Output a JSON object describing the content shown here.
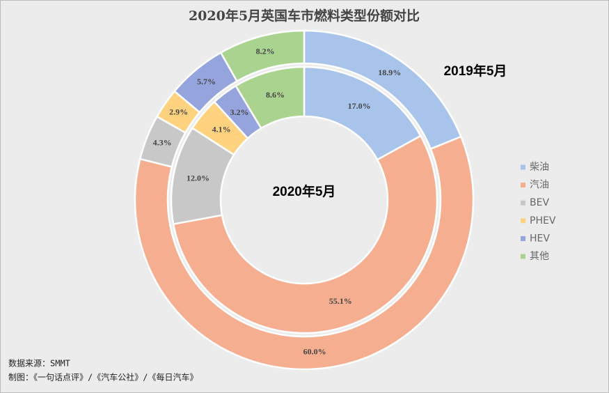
{
  "chart_data": {
    "type": "pie",
    "title": "2020年5月英国车市燃料类型份额对比",
    "categories": [
      "柴油",
      "汽油",
      "BEV",
      "PHEV",
      "HEV",
      "其他"
    ],
    "colors": [
      "#a9c4eb",
      "#f5ae90",
      "#c8c8c8",
      "#ffd27f",
      "#95a4dd",
      "#a9d38f"
    ],
    "series": [
      {
        "name": "2019年5月",
        "values": [
          18.9,
          60.0,
          4.3,
          2.9,
          5.7,
          8.2
        ],
        "value_labels": [
          "18.9%",
          "60.0%",
          "4.3%",
          "2.9%",
          "5.7%",
          "8.2%"
        ]
      },
      {
        "name": "2020年5月",
        "values": [
          17.0,
          55.1,
          12.0,
          4.1,
          3.2,
          8.6
        ],
        "value_labels": [
          "17.0%",
          "55.1%",
          "12.0%",
          "4.1%",
          "3.2%",
          "8.6%"
        ]
      }
    ],
    "legend": "right",
    "annotations": [
      "数据来源：SMMT",
      "制图：《一句话点评》/《汽车公社》/《每日汽车》"
    ]
  }
}
